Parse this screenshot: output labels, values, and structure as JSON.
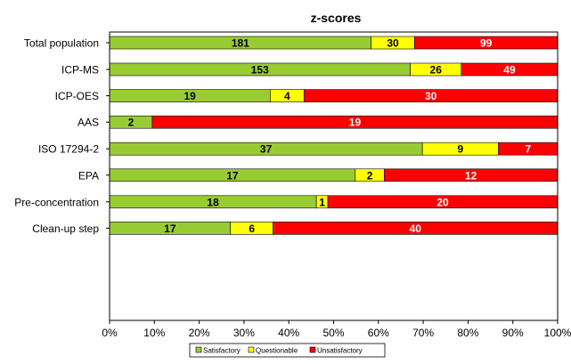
{
  "chart_data": {
    "type": "bar",
    "orientation": "horizontal",
    "stacked": "percent",
    "title": "z-scores",
    "categories": [
      "Total population",
      "ICP-MS",
      "ICP-OES",
      "AAS",
      "ISO 17294-2",
      "EPA",
      "Pre-concentration",
      "Clean-up step"
    ],
    "groups": [
      [
        "Total population"
      ],
      [
        "ICP-MS",
        "ICP-OES",
        "AAS"
      ],
      [
        "ISO 17294-2",
        "EPA"
      ],
      [
        "Pre-concentration",
        "Clean-up step"
      ]
    ],
    "series": [
      {
        "name": "Satisfactory",
        "color": "#99cc33",
        "values": [
          181,
          153,
          19,
          2,
          37,
          17,
          18,
          17
        ]
      },
      {
        "name": "Questionable",
        "color": "#ffff00",
        "values": [
          30,
          26,
          4,
          0,
          9,
          2,
          1,
          6
        ]
      },
      {
        "name": "Unsatisfactory",
        "color": "#ff0000",
        "values": [
          99,
          49,
          30,
          19,
          7,
          12,
          20,
          40
        ]
      }
    ],
    "xticks": [
      "0%",
      "10%",
      "20%",
      "30%",
      "40%",
      "50%",
      "60%",
      "70%",
      "80%",
      "90%",
      "100%"
    ],
    "xlim": [
      0,
      100
    ],
    "grid": false,
    "legend_position": "bottom"
  }
}
